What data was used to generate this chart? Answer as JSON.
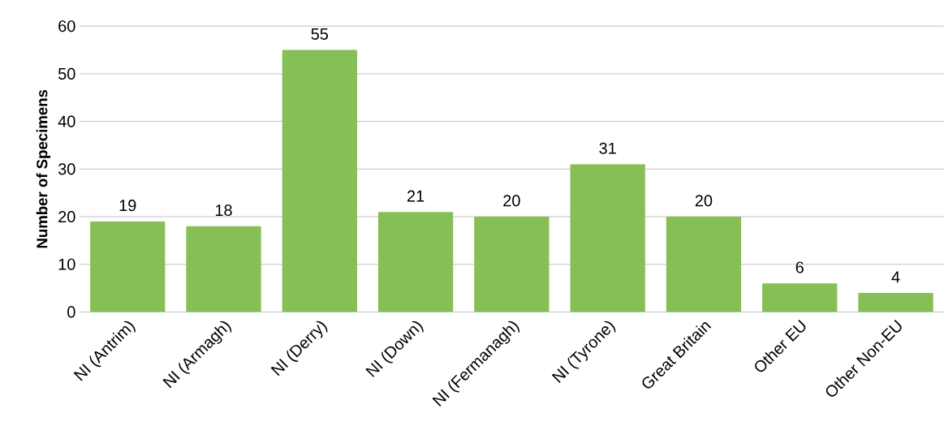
{
  "chart_data": {
    "type": "bar",
    "ylabel": "Number of Specimens",
    "categories": [
      "NI (Antrim)",
      "NI (Armagh)",
      "NI (Derry)",
      "NI (Down)",
      "NI (Fermanagh)",
      "NI (Tyrone)",
      "Great Britain",
      "Other EU",
      "Other Non-EU"
    ],
    "values": [
      19,
      18,
      55,
      21,
      20,
      31,
      20,
      6,
      4
    ],
    "color": "#86bf55",
    "ylim": [
      0,
      60
    ],
    "yticks": [
      0,
      10,
      20,
      30,
      40,
      50,
      60
    ],
    "grid": "y",
    "data_labels": true
  }
}
